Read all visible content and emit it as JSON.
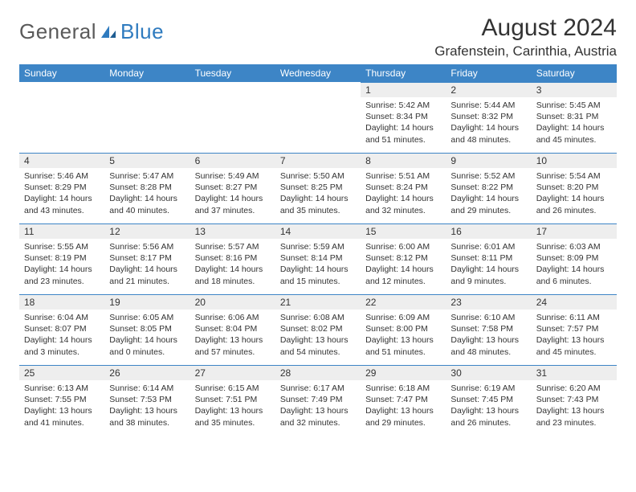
{
  "brand": {
    "part1": "General",
    "part2": "Blue"
  },
  "title": "August 2024",
  "location": "Grafenstein, Carinthia, Austria",
  "colors": {
    "header_bg": "#3d85c6",
    "header_text": "#ffffff",
    "daynum_bg": "#eeeeee",
    "divider": "#3d85c6",
    "text": "#333333",
    "logo_gray": "#5a5a5a",
    "logo_blue": "#2f7bbf"
  },
  "dow": [
    "Sunday",
    "Monday",
    "Tuesday",
    "Wednesday",
    "Thursday",
    "Friday",
    "Saturday"
  ],
  "weeks": [
    [
      null,
      null,
      null,
      null,
      {
        "n": "1",
        "sr": "Sunrise: 5:42 AM",
        "ss": "Sunset: 8:34 PM",
        "dl": "Daylight: 14 hours and 51 minutes."
      },
      {
        "n": "2",
        "sr": "Sunrise: 5:44 AM",
        "ss": "Sunset: 8:32 PM",
        "dl": "Daylight: 14 hours and 48 minutes."
      },
      {
        "n": "3",
        "sr": "Sunrise: 5:45 AM",
        "ss": "Sunset: 8:31 PM",
        "dl": "Daylight: 14 hours and 45 minutes."
      }
    ],
    [
      {
        "n": "4",
        "sr": "Sunrise: 5:46 AM",
        "ss": "Sunset: 8:29 PM",
        "dl": "Daylight: 14 hours and 43 minutes."
      },
      {
        "n": "5",
        "sr": "Sunrise: 5:47 AM",
        "ss": "Sunset: 8:28 PM",
        "dl": "Daylight: 14 hours and 40 minutes."
      },
      {
        "n": "6",
        "sr": "Sunrise: 5:49 AM",
        "ss": "Sunset: 8:27 PM",
        "dl": "Daylight: 14 hours and 37 minutes."
      },
      {
        "n": "7",
        "sr": "Sunrise: 5:50 AM",
        "ss": "Sunset: 8:25 PM",
        "dl": "Daylight: 14 hours and 35 minutes."
      },
      {
        "n": "8",
        "sr": "Sunrise: 5:51 AM",
        "ss": "Sunset: 8:24 PM",
        "dl": "Daylight: 14 hours and 32 minutes."
      },
      {
        "n": "9",
        "sr": "Sunrise: 5:52 AM",
        "ss": "Sunset: 8:22 PM",
        "dl": "Daylight: 14 hours and 29 minutes."
      },
      {
        "n": "10",
        "sr": "Sunrise: 5:54 AM",
        "ss": "Sunset: 8:20 PM",
        "dl": "Daylight: 14 hours and 26 minutes."
      }
    ],
    [
      {
        "n": "11",
        "sr": "Sunrise: 5:55 AM",
        "ss": "Sunset: 8:19 PM",
        "dl": "Daylight: 14 hours and 23 minutes."
      },
      {
        "n": "12",
        "sr": "Sunrise: 5:56 AM",
        "ss": "Sunset: 8:17 PM",
        "dl": "Daylight: 14 hours and 21 minutes."
      },
      {
        "n": "13",
        "sr": "Sunrise: 5:57 AM",
        "ss": "Sunset: 8:16 PM",
        "dl": "Daylight: 14 hours and 18 minutes."
      },
      {
        "n": "14",
        "sr": "Sunrise: 5:59 AM",
        "ss": "Sunset: 8:14 PM",
        "dl": "Daylight: 14 hours and 15 minutes."
      },
      {
        "n": "15",
        "sr": "Sunrise: 6:00 AM",
        "ss": "Sunset: 8:12 PM",
        "dl": "Daylight: 14 hours and 12 minutes."
      },
      {
        "n": "16",
        "sr": "Sunrise: 6:01 AM",
        "ss": "Sunset: 8:11 PM",
        "dl": "Daylight: 14 hours and 9 minutes."
      },
      {
        "n": "17",
        "sr": "Sunrise: 6:03 AM",
        "ss": "Sunset: 8:09 PM",
        "dl": "Daylight: 14 hours and 6 minutes."
      }
    ],
    [
      {
        "n": "18",
        "sr": "Sunrise: 6:04 AM",
        "ss": "Sunset: 8:07 PM",
        "dl": "Daylight: 14 hours and 3 minutes."
      },
      {
        "n": "19",
        "sr": "Sunrise: 6:05 AM",
        "ss": "Sunset: 8:05 PM",
        "dl": "Daylight: 14 hours and 0 minutes."
      },
      {
        "n": "20",
        "sr": "Sunrise: 6:06 AM",
        "ss": "Sunset: 8:04 PM",
        "dl": "Daylight: 13 hours and 57 minutes."
      },
      {
        "n": "21",
        "sr": "Sunrise: 6:08 AM",
        "ss": "Sunset: 8:02 PM",
        "dl": "Daylight: 13 hours and 54 minutes."
      },
      {
        "n": "22",
        "sr": "Sunrise: 6:09 AM",
        "ss": "Sunset: 8:00 PM",
        "dl": "Daylight: 13 hours and 51 minutes."
      },
      {
        "n": "23",
        "sr": "Sunrise: 6:10 AM",
        "ss": "Sunset: 7:58 PM",
        "dl": "Daylight: 13 hours and 48 minutes."
      },
      {
        "n": "24",
        "sr": "Sunrise: 6:11 AM",
        "ss": "Sunset: 7:57 PM",
        "dl": "Daylight: 13 hours and 45 minutes."
      }
    ],
    [
      {
        "n": "25",
        "sr": "Sunrise: 6:13 AM",
        "ss": "Sunset: 7:55 PM",
        "dl": "Daylight: 13 hours and 41 minutes."
      },
      {
        "n": "26",
        "sr": "Sunrise: 6:14 AM",
        "ss": "Sunset: 7:53 PM",
        "dl": "Daylight: 13 hours and 38 minutes."
      },
      {
        "n": "27",
        "sr": "Sunrise: 6:15 AM",
        "ss": "Sunset: 7:51 PM",
        "dl": "Daylight: 13 hours and 35 minutes."
      },
      {
        "n": "28",
        "sr": "Sunrise: 6:17 AM",
        "ss": "Sunset: 7:49 PM",
        "dl": "Daylight: 13 hours and 32 minutes."
      },
      {
        "n": "29",
        "sr": "Sunrise: 6:18 AM",
        "ss": "Sunset: 7:47 PM",
        "dl": "Daylight: 13 hours and 29 minutes."
      },
      {
        "n": "30",
        "sr": "Sunrise: 6:19 AM",
        "ss": "Sunset: 7:45 PM",
        "dl": "Daylight: 13 hours and 26 minutes."
      },
      {
        "n": "31",
        "sr": "Sunrise: 6:20 AM",
        "ss": "Sunset: 7:43 PM",
        "dl": "Daylight: 13 hours and 23 minutes."
      }
    ]
  ]
}
